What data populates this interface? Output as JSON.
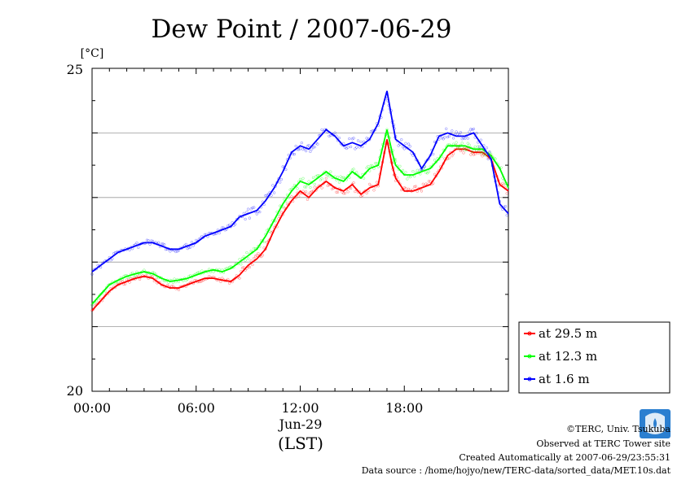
{
  "chart_data": {
    "type": "line",
    "title": "Dew Point / 2007-06-29",
    "unit_label": "[°C]",
    "ylim": [
      20,
      25
    ],
    "y_ticks": [
      "20",
      "25"
    ],
    "y_gridlines": [
      21,
      22,
      23,
      24
    ],
    "xlim": [
      0,
      24
    ],
    "x_ticks": [
      {
        "value": 0,
        "label": "00:00"
      },
      {
        "value": 6,
        "label": "06:00"
      },
      {
        "value": 12,
        "label": "12:00"
      },
      {
        "value": 18,
        "label": "18:00"
      }
    ],
    "x_date_label": "Jun-29",
    "x_zone_label": "(LST)",
    "x": [
      0,
      0.5,
      1,
      1.5,
      2,
      2.5,
      3,
      3.5,
      4,
      4.5,
      5,
      5.5,
      6,
      6.5,
      7,
      7.5,
      8,
      8.5,
      9,
      9.5,
      10,
      10.5,
      11,
      11.5,
      12,
      12.5,
      13,
      13.5,
      14,
      14.5,
      15,
      15.5,
      16,
      16.5,
      17,
      17.3,
      17.5,
      18,
      18.5,
      19,
      19.5,
      20,
      20.5,
      21,
      21.5,
      22,
      22.5,
      23,
      23.5,
      24
    ],
    "series": [
      {
        "name": "at 29.5 m",
        "color": "#ff0000",
        "values": [
          21.25,
          21.4,
          21.55,
          21.65,
          21.7,
          21.75,
          21.78,
          21.75,
          21.65,
          21.6,
          21.6,
          21.65,
          21.7,
          21.75,
          21.75,
          21.72,
          21.7,
          21.8,
          21.95,
          22.05,
          22.2,
          22.5,
          22.75,
          22.95,
          23.1,
          23.0,
          23.15,
          23.25,
          23.15,
          23.1,
          23.2,
          23.05,
          23.15,
          23.2,
          23.9,
          23.5,
          23.3,
          23.1,
          23.1,
          23.15,
          23.2,
          23.4,
          23.65,
          23.75,
          23.75,
          23.7,
          23.7,
          23.6,
          23.2,
          23.1
        ]
      },
      {
        "name": "at 12.3 m",
        "color": "#00ff00",
        "values": [
          21.35,
          21.5,
          21.65,
          21.72,
          21.78,
          21.82,
          21.85,
          21.82,
          21.75,
          21.7,
          21.72,
          21.75,
          21.8,
          21.85,
          21.88,
          21.85,
          21.9,
          22.0,
          22.1,
          22.2,
          22.4,
          22.65,
          22.9,
          23.1,
          23.25,
          23.2,
          23.3,
          23.4,
          23.3,
          23.25,
          23.4,
          23.3,
          23.45,
          23.5,
          24.05,
          23.7,
          23.5,
          23.35,
          23.35,
          23.4,
          23.45,
          23.6,
          23.8,
          23.8,
          23.8,
          23.75,
          23.75,
          23.65,
          23.45,
          23.15
        ]
      },
      {
        "name": "at 1.6 m",
        "color": "#0000ff",
        "values": [
          21.85,
          21.95,
          22.05,
          22.15,
          22.2,
          22.25,
          22.3,
          22.3,
          22.25,
          22.2,
          22.2,
          22.25,
          22.3,
          22.4,
          22.45,
          22.5,
          22.55,
          22.7,
          22.75,
          22.8,
          22.95,
          23.15,
          23.4,
          23.7,
          23.8,
          23.75,
          23.9,
          24.05,
          23.95,
          23.8,
          23.85,
          23.8,
          23.9,
          24.15,
          24.65,
          24.2,
          23.9,
          23.8,
          23.7,
          23.45,
          23.65,
          23.95,
          24.0,
          23.95,
          23.95,
          24.0,
          23.8,
          23.6,
          22.9,
          22.75
        ]
      }
    ],
    "legend_position": "right-bottom",
    "grid": true
  },
  "footer": {
    "copyright": "©TERC, Univ. Tsukuba",
    "observed": "Observed at TERC Tower site",
    "created": "Created Automatically at 2007-06-29/23:55:31",
    "source": "Data source : /home/hojyo/new/TERC-data/sorted_data/MET.10s.dat",
    "logo_text": "TERC"
  }
}
